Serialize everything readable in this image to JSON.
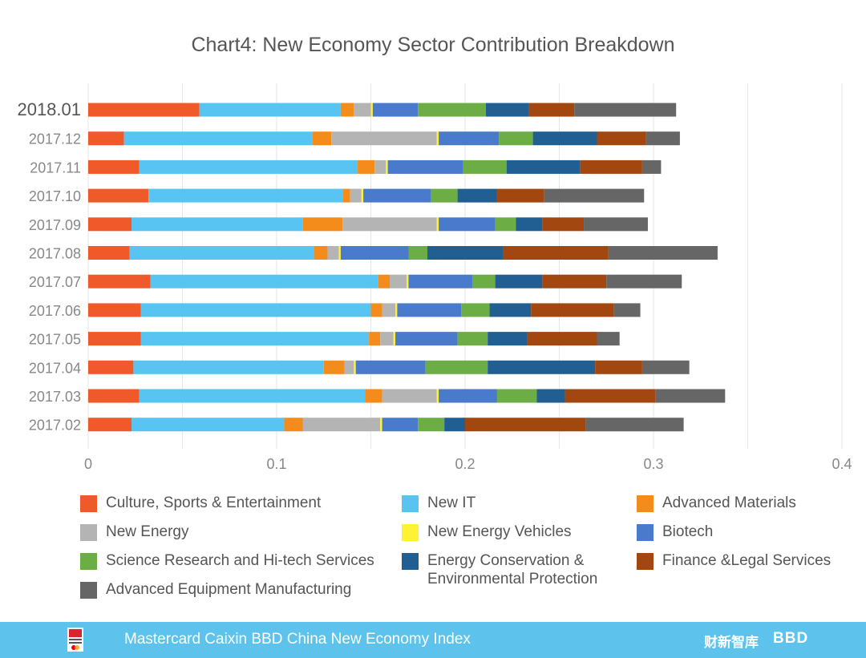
{
  "chart_data": {
    "type": "bar",
    "orientation": "horizontal",
    "stacked": true,
    "title": "Chart4: New Economy Sector Contribution Breakdown",
    "categories": [
      "2018.01",
      "2017.12",
      "2017.11",
      "2017.10",
      "2017.09",
      "2017.08",
      "2017.07",
      "2017.06",
      "2017.05",
      "2017.04",
      "2017.03",
      "2017.02"
    ],
    "highlight_category": "2018.01",
    "xlim": [
      0,
      0.4
    ],
    "xticks": [
      "0",
      "0.1",
      "0.2",
      "0.3",
      "0.4"
    ],
    "xtick_values": [
      0,
      0.1,
      0.2,
      0.3,
      0.4
    ],
    "grid": true,
    "legend_position": "bottom",
    "series": [
      {
        "name": "Culture, Sports & Entertainment",
        "color": "#f05a2a",
        "values": [
          0.059,
          0.019,
          0.027,
          0.032,
          0.023,
          0.022,
          0.033,
          0.028,
          0.028,
          0.024,
          0.027,
          0.023
        ]
      },
      {
        "name": "New IT",
        "color": "#58c4f1",
        "values": [
          0.075,
          0.1,
          0.116,
          0.103,
          0.091,
          0.098,
          0.121,
          0.122,
          0.121,
          0.101,
          0.12,
          0.081
        ]
      },
      {
        "name": "Advanced Materials",
        "color": "#f48c1c",
        "values": [
          0.007,
          0.01,
          0.009,
          0.004,
          0.021,
          0.007,
          0.006,
          0.006,
          0.006,
          0.011,
          0.009,
          0.01
        ]
      },
      {
        "name": "New Energy",
        "color": "#b4b4b4",
        "values": [
          0.009,
          0.056,
          0.006,
          0.006,
          0.05,
          0.006,
          0.009,
          0.007,
          0.007,
          0.005,
          0.029,
          0.041
        ]
      },
      {
        "name": "New Energy Vehicles",
        "color": "#fff232",
        "values": [
          0.001,
          0.001,
          0.001,
          0.001,
          0.001,
          0.001,
          0.001,
          0.001,
          0.001,
          0.001,
          0.001,
          0.001
        ]
      },
      {
        "name": "Biotech",
        "color": "#4a7acb",
        "values": [
          0.024,
          0.032,
          0.04,
          0.036,
          0.03,
          0.036,
          0.034,
          0.034,
          0.033,
          0.037,
          0.031,
          0.019
        ]
      },
      {
        "name": "Science Research and Hi-tech Services",
        "color": "#6cae45",
        "values": [
          0.036,
          0.018,
          0.023,
          0.014,
          0.011,
          0.01,
          0.012,
          0.015,
          0.016,
          0.033,
          0.021,
          0.014
        ]
      },
      {
        "name": "Energy Conservation & Environmental Protection",
        "color": "#215e92",
        "values": [
          0.023,
          0.034,
          0.039,
          0.021,
          0.014,
          0.04,
          0.025,
          0.022,
          0.021,
          0.057,
          0.015,
          0.011
        ]
      },
      {
        "name": "Finance &Legal Services",
        "color": "#a2470f",
        "values": [
          0.024,
          0.026,
          0.033,
          0.025,
          0.022,
          0.056,
          0.034,
          0.044,
          0.037,
          0.025,
          0.048,
          0.064
        ]
      },
      {
        "name": "Advanced Equipment Manufacturing",
        "color": "#666666",
        "values": [
          0.054,
          0.018,
          0.01,
          0.053,
          0.034,
          0.058,
          0.04,
          0.014,
          0.012,
          0.025,
          0.037,
          0.052
        ]
      }
    ]
  },
  "legend": [
    {
      "label": "Culture, Sports & Entertainment"
    },
    {
      "label": "New IT"
    },
    {
      "label": "Advanced Materials"
    },
    {
      "label": "New Energy"
    },
    {
      "label": "New Energy Vehicles"
    },
    {
      "label": "Biotech"
    },
    {
      "label": "Science Research and Hi-tech Services"
    },
    {
      "label": "Energy Conservation & Environmental Protection"
    },
    {
      "label": "Finance &Legal Services"
    },
    {
      "label": "Advanced Equipment Manufacturing"
    }
  ],
  "footer": {
    "logo_icon": "nei-mastercard-logo-icon",
    "text": "Mastercard Caixin BBD China New Economy Index",
    "brand_caixin": "财新智库",
    "brand_bbd": "BBD",
    "background": "#5ec3ec"
  }
}
